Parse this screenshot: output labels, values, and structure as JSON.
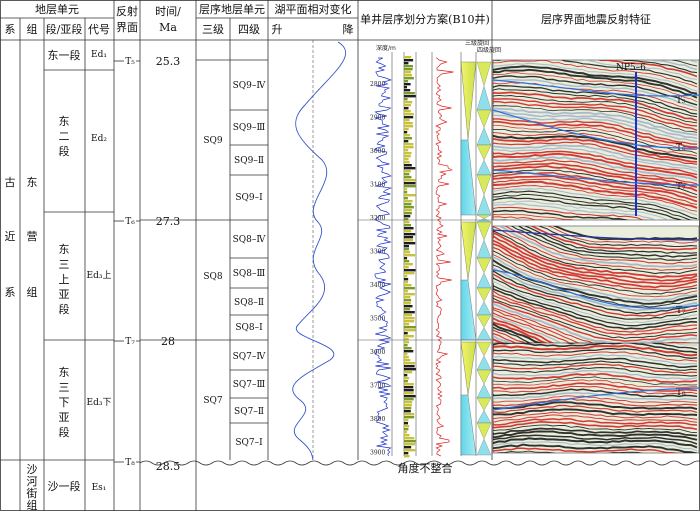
{
  "headers": {
    "strat_unit": "地层单元",
    "system": "系",
    "group": "组",
    "section": "段/亚段",
    "code": "代号",
    "reflection_1": "反射",
    "reflection_2": "界面",
    "time_1": "时间/",
    "time_2": "Ma",
    "seq_unit": "层序地层单元",
    "third_order": "三级",
    "fourth_order": "四级",
    "lake_level": "湖平面相对变化",
    "rise": "升",
    "fall": "降",
    "well": "单井层序划分方案(B10井)",
    "seismic": "层序界面地震反射特征"
  },
  "system_name": [
    "古",
    "近",
    "系"
  ],
  "group_dongying": [
    "东",
    "营",
    "组"
  ],
  "group_shahejie": [
    "沙",
    "河",
    "街",
    "组"
  ],
  "sections": [
    {
      "lines": [
        "东一段"
      ],
      "code": "Ed₁"
    },
    {
      "lines": [
        "东",
        "二",
        "段"
      ],
      "code": "Ed₂"
    },
    {
      "lines": [
        "东",
        "三",
        "上",
        "亚",
        "段"
      ],
      "code": "Ed₃上"
    },
    {
      "lines": [
        "东",
        "三",
        "下",
        "亚",
        "段"
      ],
      "code": "Ed₃下"
    },
    {
      "lines": [
        "沙一段"
      ],
      "code": "Es₁"
    }
  ],
  "surfaces": [
    {
      "label": "T₅",
      "time": "25.3"
    },
    {
      "label": "T₆",
      "time": "27.3"
    },
    {
      "label": "T₇",
      "time": "28"
    },
    {
      "label": "T₈",
      "time": "28.5"
    }
  ],
  "third_order": [
    "SQ9",
    "SQ8",
    "SQ7"
  ],
  "fourth_order": [
    "SQ9–Ⅳ",
    "SQ9–Ⅲ",
    "SQ9–Ⅱ",
    "SQ9–Ⅰ",
    "SQ8–Ⅳ",
    "SQ8–Ⅲ",
    "SQ8–Ⅱ",
    "SQ8–Ⅰ",
    "SQ7–Ⅳ",
    "SQ7–Ⅲ",
    "SQ7–Ⅱ",
    "SQ7–Ⅰ"
  ],
  "unconformity": "角度不整合",
  "well_log": {
    "depth_header": "深度/m",
    "depths": [
      "2800",
      "2900",
      "3000",
      "3100",
      "3200",
      "3300",
      "3400",
      "3500",
      "3600",
      "3700",
      "3800",
      "3900"
    ],
    "third_cycle": "三级旋回",
    "fourth_cycle": "四级旋回"
  },
  "seismic": {
    "well_name": "NP5–6",
    "labels": [
      "T₅",
      "T₆",
      "T₇",
      "T₇",
      "T₈"
    ]
  },
  "colors": {
    "grid": "#333333",
    "lake_curve": "#3355cc",
    "log_blue": "#1a2ecc",
    "log_red": "#e02020",
    "seismic_bg": "#e9efdc"
  }
}
